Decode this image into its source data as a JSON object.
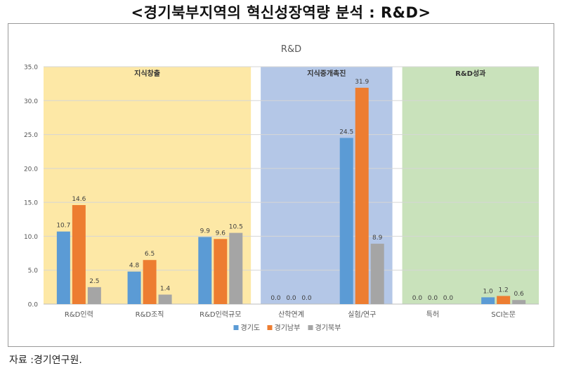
{
  "page_title": "<경기북부지역의 혁신성장역량 분석 : R&D>",
  "source_note": "자료 :경기연구원.",
  "chart_data": {
    "type": "bar",
    "title": "R&D",
    "categories": [
      "R&D인력",
      "R&D조직",
      "R&D인력규모",
      "산학연계",
      "실험/연구",
      "특허",
      "SCI논문"
    ],
    "series": [
      {
        "name": "경기도",
        "color": "#5b9bd5",
        "values": [
          10.7,
          4.8,
          9.9,
          0.0,
          24.5,
          0.0,
          1.0
        ]
      },
      {
        "name": "경기남부",
        "color": "#ed7d31",
        "values": [
          14.6,
          6.5,
          9.6,
          0.0,
          31.9,
          0.0,
          1.2
        ]
      },
      {
        "name": "경기북부",
        "color": "#a5a5a5",
        "values": [
          2.5,
          1.4,
          10.5,
          0.0,
          8.9,
          0.0,
          0.6
        ]
      }
    ],
    "ylim": [
      0,
      35
    ],
    "yticks": [
      "0.0",
      "5.0",
      "10.0",
      "15.0",
      "20.0",
      "25.0",
      "30.0",
      "35.0"
    ],
    "grid": true,
    "legend_position": "bottom",
    "groups": [
      {
        "label": "지식창출",
        "categories": [
          "R&D인력",
          "R&D조직",
          "R&D인력규모"
        ],
        "color": "#fde8a6"
      },
      {
        "label": "지식중개촉진",
        "categories": [
          "산학연계",
          "실험/연구"
        ],
        "color": "#b4c7e7"
      },
      {
        "label": "R&D성과",
        "categories": [
          "특허",
          "SCI논문"
        ],
        "color": "#c9e2bb"
      }
    ]
  }
}
